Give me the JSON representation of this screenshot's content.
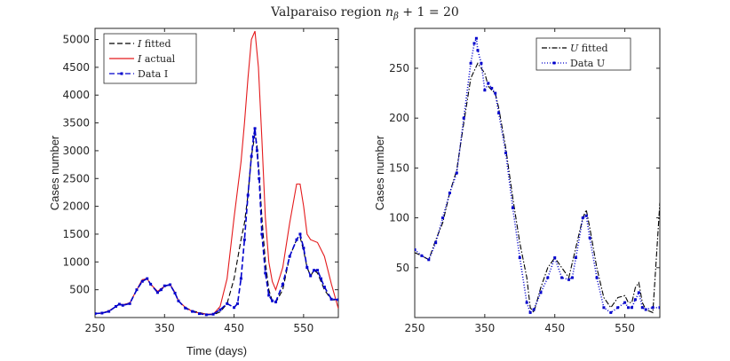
{
  "figure": {
    "title": "Valparaiso region n_β + 1 = 20",
    "title_prefix": "Valparaiso region ",
    "title_math_var": "n",
    "title_math_sub": "β",
    "title_math_rest": " + 1 = 20"
  },
  "chart_data": [
    {
      "type": "line",
      "xlabel": "Time (days)",
      "ylabel": "Cases number",
      "xlim": [
        250,
        600
      ],
      "ylim": [
        0,
        5200
      ],
      "xticks": [
        250,
        350,
        450,
        550
      ],
      "yticks": [
        500,
        1000,
        1500,
        2000,
        2500,
        3000,
        3500,
        4000,
        4500,
        5000
      ],
      "grid": false,
      "legend_position": "top-left",
      "series": [
        {
          "name": "I fitted",
          "legend_math": "I",
          "legend_rest": " fitted",
          "color": "#000000",
          "style": "dashed",
          "marker": "none",
          "x": [
            250,
            260,
            270,
            280,
            285,
            290,
            300,
            310,
            318,
            325,
            330,
            340,
            345,
            350,
            358,
            365,
            370,
            380,
            390,
            400,
            410,
            420,
            430,
            440,
            450,
            460,
            465,
            470,
            475,
            480,
            483,
            486,
            490,
            495,
            500,
            505,
            510,
            520,
            530,
            540,
            545,
            550,
            555,
            560,
            565,
            570,
            575,
            580,
            590,
            600
          ],
          "y": [
            70,
            80,
            120,
            200,
            240,
            230,
            260,
            500,
            680,
            700,
            600,
            460,
            500,
            560,
            590,
            450,
            300,
            180,
            120,
            90,
            60,
            50,
            100,
            250,
            700,
            1400,
            1700,
            2200,
            2900,
            3300,
            3100,
            2600,
            1800,
            1000,
            500,
            300,
            270,
            500,
            1100,
            1400,
            1450,
            1200,
            900,
            750,
            850,
            800,
            650,
            500,
            320,
            310
          ]
        },
        {
          "name": "I actual",
          "legend_math": "I",
          "legend_rest": " actual",
          "color": "#e41a1c",
          "style": "solid",
          "marker": "none",
          "x": [
            250,
            260,
            270,
            280,
            285,
            290,
            300,
            310,
            318,
            325,
            330,
            340,
            345,
            350,
            358,
            365,
            370,
            380,
            390,
            400,
            410,
            420,
            430,
            440,
            450,
            460,
            465,
            470,
            475,
            480,
            485,
            490,
            495,
            500,
            505,
            510,
            520,
            530,
            540,
            545,
            550,
            555,
            560,
            570,
            580,
            590,
            600
          ],
          "y": [
            70,
            80,
            120,
            200,
            240,
            230,
            260,
            500,
            680,
            700,
            600,
            470,
            520,
            560,
            600,
            450,
            300,
            180,
            110,
            80,
            60,
            60,
            200,
            700,
            1800,
            2800,
            3500,
            4300,
            5000,
            5150,
            4500,
            3200,
            1800,
            1000,
            650,
            500,
            900,
            1700,
            2400,
            2400,
            2000,
            1500,
            1400,
            1350,
            1100,
            600,
            160
          ]
        },
        {
          "name": "Data I",
          "legend_math": "",
          "legend_rest": "Data I",
          "color": "#0000cc",
          "style": "dashed",
          "marker": "dot",
          "x": [
            250,
            260,
            270,
            280,
            285,
            290,
            300,
            310,
            318,
            325,
            330,
            340,
            345,
            350,
            358,
            365,
            370,
            380,
            390,
            400,
            410,
            420,
            430,
            440,
            450,
            455,
            460,
            465,
            470,
            475,
            478,
            480,
            483,
            486,
            490,
            495,
            500,
            505,
            510,
            520,
            530,
            540,
            545,
            550,
            555,
            560,
            565,
            570,
            575,
            580,
            590,
            600
          ],
          "y": [
            70,
            80,
            110,
            200,
            240,
            220,
            250,
            500,
            650,
            700,
            600,
            450,
            500,
            570,
            590,
            440,
            300,
            170,
            110,
            70,
            50,
            60,
            140,
            250,
            180,
            250,
            700,
            1400,
            2200,
            2900,
            3250,
            3400,
            3000,
            2500,
            1500,
            800,
            400,
            300,
            280,
            600,
            1100,
            1400,
            1500,
            1250,
            900,
            750,
            850,
            850,
            700,
            550,
            330,
            320
          ]
        }
      ]
    },
    {
      "type": "line",
      "xlabel": "",
      "ylabel": "Cases number",
      "xlim": [
        250,
        600
      ],
      "ylim": [
        0,
        290
      ],
      "xticks": [
        250,
        350,
        450,
        550
      ],
      "yticks": [
        50,
        100,
        150,
        200,
        250
      ],
      "grid": false,
      "legend_position": "top-right",
      "series": [
        {
          "name": "U fitted",
          "legend_math": "U",
          "legend_rest": " fitted",
          "color": "#000000",
          "style": "dashdot",
          "marker": "none",
          "x": [
            250,
            260,
            270,
            280,
            290,
            300,
            310,
            320,
            330,
            340,
            345,
            350,
            355,
            360,
            365,
            370,
            380,
            390,
            400,
            410,
            415,
            420,
            430,
            440,
            450,
            460,
            470,
            480,
            490,
            495,
            500,
            510,
            520,
            530,
            540,
            550,
            555,
            560,
            565,
            570,
            575,
            580,
            590,
            595,
            600
          ],
          "y": [
            65,
            62,
            58,
            78,
            95,
            125,
            148,
            195,
            240,
            255,
            250,
            245,
            232,
            228,
            225,
            210,
            170,
            120,
            75,
            40,
            10,
            5,
            30,
            50,
            60,
            50,
            40,
            70,
            100,
            108,
            90,
            50,
            20,
            10,
            20,
            22,
            15,
            15,
            30,
            35,
            15,
            8,
            5,
            60,
            115
          ]
        },
        {
          "name": "Data U",
          "legend_math": "",
          "legend_rest": "Data U",
          "color": "#0000cc",
          "style": "dotted",
          "marker": "dot",
          "x": [
            250,
            260,
            270,
            280,
            290,
            300,
            310,
            320,
            330,
            335,
            338,
            340,
            345,
            350,
            355,
            360,
            365,
            370,
            380,
            390,
            400,
            410,
            415,
            420,
            430,
            440,
            450,
            460,
            470,
            475,
            480,
            490,
            495,
            500,
            510,
            520,
            530,
            540,
            550,
            555,
            560,
            565,
            570,
            575,
            580,
            590,
            600
          ],
          "y": [
            68,
            62,
            58,
            75,
            100,
            125,
            145,
            200,
            255,
            275,
            280,
            268,
            255,
            228,
            235,
            230,
            225,
            205,
            165,
            110,
            60,
            15,
            5,
            8,
            25,
            40,
            60,
            40,
            38,
            40,
            60,
            100,
            102,
            80,
            40,
            10,
            5,
            10,
            15,
            10,
            10,
            18,
            25,
            10,
            8,
            10,
            10
          ]
        }
      ]
    }
  ]
}
